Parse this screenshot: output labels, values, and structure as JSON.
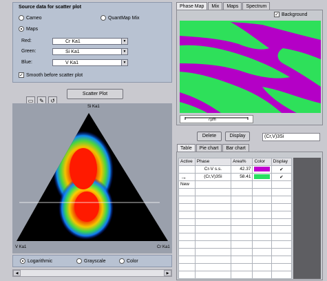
{
  "source_group": {
    "title": "Source data for scatter plot",
    "radios": [
      {
        "label": "Cameo",
        "selected": false
      },
      {
        "label": "QuantMap Mix",
        "selected": false
      },
      {
        "label": "Maps",
        "selected": true
      }
    ],
    "fields": [
      {
        "label": "Red:",
        "value": "Cr Ka1"
      },
      {
        "label": "Green:",
        "value": "Si Ka1"
      },
      {
        "label": "Blue:",
        "value": "V Ka1"
      }
    ],
    "smooth_label": "Smooth before scatter plot",
    "smooth_checked": true
  },
  "tools": {
    "select_icon": "select-rect-icon",
    "pen_icon": "pen-icon",
    "lasso_icon": "lasso-icon"
  },
  "scatter_button": "Scatter Plot",
  "triangle": {
    "top_label": "Si Ka1",
    "left_label": "V Ka1",
    "right_label": "Cr Ka1"
  },
  "scale_radios": [
    {
      "label": "Logarithmic",
      "selected": true
    },
    {
      "label": "Grayscale",
      "selected": false
    },
    {
      "label": "Color",
      "selected": false
    }
  ],
  "top_tabs": [
    "Phase Map",
    "Mix",
    "Maps",
    "Spectrum"
  ],
  "active_top_tab": "Phase Map",
  "background_label": "Background",
  "background_checked": true,
  "scale_bar": "7µm",
  "delete_button": "Delete",
  "display_button": "Display",
  "phase_name_input": "(Cr,V)3Si",
  "bottom_tabs": [
    "Table",
    "Pie chart",
    "Bar chart"
  ],
  "active_bottom_tab": "Table",
  "table": {
    "headers": [
      "Active",
      "Phase",
      "Area%",
      "Color",
      "Display"
    ],
    "rows": [
      {
        "active": "",
        "phase": "Cr-V s.s.",
        "area": "42.37",
        "color": "#c000d0",
        "display": "✔"
      },
      {
        "active": "→",
        "phase": "(Cr,V)3Si",
        "area": "58.41",
        "color": "#28e060",
        "display": "✔"
      }
    ],
    "new_label": "New"
  },
  "colors": {
    "panel_bg": "#b8c2d2",
    "phase_magenta": "#b400c6",
    "phase_green": "#2ee05a"
  }
}
